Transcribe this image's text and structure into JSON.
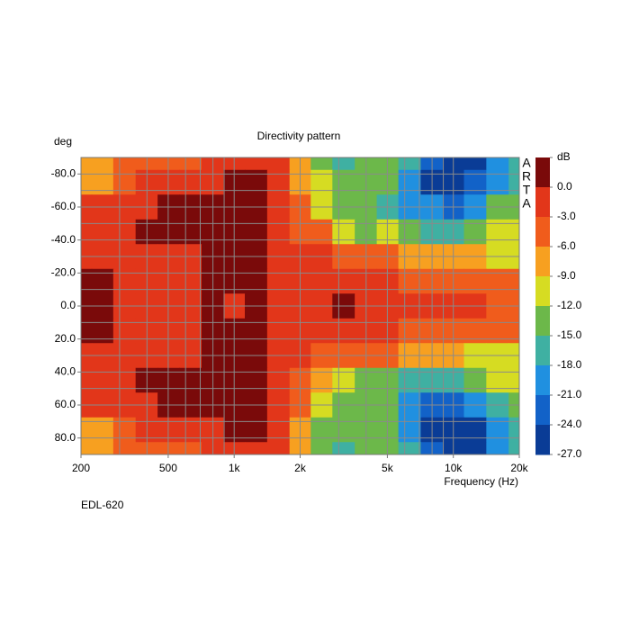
{
  "chart_data": {
    "type": "heatmap",
    "title": "Directivity pattern",
    "y_label": "deg",
    "x_label": "Frequency (Hz)",
    "side_label": "ARTA",
    "note": "EDL-620",
    "log_x": true,
    "x": [
      200,
      250,
      315,
      400,
      500,
      630,
      800,
      1000,
      1250,
      1600,
      2000,
      2500,
      3150,
      4000,
      5000,
      6300,
      8000,
      10000,
      12500,
      16000,
      20000
    ],
    "y": [
      -90,
      -75,
      -60,
      -45,
      -30,
      -15,
      0,
      15,
      30,
      45,
      60,
      75,
      90
    ],
    "values": [
      [
        -8,
        -7,
        -5,
        -4,
        -4,
        -3,
        -2,
        -2,
        -2,
        -2,
        -7,
        -12,
        -15,
        -14,
        -13,
        -17,
        -23,
        -25,
        -24,
        -18,
        -16
      ],
      [
        -7,
        -6,
        -4,
        -2,
        -1,
        -1,
        -1,
        1,
        1,
        -1,
        -7,
        -11,
        -14,
        -13,
        -12,
        -20,
        -24,
        -25,
        -23,
        -20,
        -15
      ],
      [
        -2,
        -2,
        -1,
        -1,
        1,
        1,
        1,
        1,
        1,
        -2,
        -5,
        -10,
        -13,
        -14,
        -15,
        -19,
        -20,
        -22,
        -20,
        -14,
        -12
      ],
      [
        -1,
        -1,
        -1,
        1,
        1,
        1,
        1,
        1,
        1,
        -1,
        -3,
        -5,
        -10,
        -13,
        -11,
        -13,
        -16,
        -16,
        -13,
        -11,
        -10
      ],
      [
        -1,
        -1,
        -1,
        -1,
        -1,
        -1,
        1,
        1,
        1,
        -1,
        -2,
        -2,
        -3,
        -4,
        -4,
        -6,
        -7,
        -8,
        -8,
        -10,
        -10
      ],
      [
        1,
        1,
        -1,
        -1,
        -1,
        -1,
        1,
        1,
        1,
        -1,
        -1,
        -1,
        -1,
        -2,
        -2,
        -3,
        -3,
        -4,
        -4,
        -4,
        -5
      ],
      [
        1,
        1,
        -1,
        -1,
        -1,
        -1,
        1,
        -1,
        1,
        -1,
        -1,
        -1,
        1,
        -1,
        -1,
        -1,
        -2,
        -2,
        -2,
        -3,
        -4
      ],
      [
        1,
        1,
        -1,
        -1,
        -1,
        -1,
        1,
        1,
        1,
        -1,
        -1,
        -1,
        -1,
        -2,
        -2,
        -3,
        -3,
        -4,
        -4,
        -4,
        -5
      ],
      [
        -1,
        -1,
        -1,
        -1,
        -1,
        -1,
        1,
        1,
        1,
        -1,
        -2,
        -3,
        -4,
        -5,
        -5,
        -7,
        -8,
        -8,
        -9,
        -10,
        -10
      ],
      [
        -1,
        -1,
        -1,
        1,
        1,
        1,
        1,
        1,
        1,
        -1,
        -3,
        -6,
        -11,
        -13,
        -12,
        -15,
        -17,
        -16,
        -13,
        -11,
        -10
      ],
      [
        -2,
        -2,
        -1,
        -1,
        1,
        1,
        1,
        1,
        1,
        -2,
        -5,
        -11,
        -13,
        -14,
        -13,
        -19,
        -21,
        -22,
        -20,
        -15,
        -12
      ],
      [
        -7,
        -6,
        -4,
        -2,
        -1,
        -1,
        -1,
        1,
        1,
        -1,
        -7,
        -12,
        -14,
        -13,
        -12,
        -20,
        -25,
        -25,
        -24,
        -20,
        -15
      ],
      [
        -8,
        -7,
        -5,
        -4,
        -4,
        -3,
        -2,
        -2,
        -2,
        -2,
        -7,
        -12,
        -15,
        -14,
        -14,
        -17,
        -23,
        -25,
        -24,
        -18,
        -16
      ]
    ],
    "xlim": [
      200,
      20000
    ],
    "ylim": [
      -90,
      90
    ],
    "xticks": [
      {
        "value": 200,
        "label": "200"
      },
      {
        "value": 500,
        "label": "500"
      },
      {
        "value": 1000,
        "label": "1k"
      },
      {
        "value": 2000,
        "label": "2k"
      },
      {
        "value": 5000,
        "label": "5k"
      },
      {
        "value": 10000,
        "label": "10k"
      },
      {
        "value": 20000,
        "label": "20k"
      }
    ],
    "yticks": [
      {
        "value": -80,
        "label": "-80.0"
      },
      {
        "value": -60,
        "label": "-60.0"
      },
      {
        "value": -40,
        "label": "-40.0"
      },
      {
        "value": -20,
        "label": "-20.0"
      },
      {
        "value": 0,
        "label": "0.0"
      },
      {
        "value": 20,
        "label": "20.0"
      },
      {
        "value": 40,
        "label": "40.0"
      },
      {
        "value": 60,
        "label": "60.0"
      },
      {
        "value": 80,
        "label": "80.0"
      }
    ],
    "xgrid": [
      200,
      300,
      400,
      500,
      600,
      700,
      800,
      900,
      1000,
      2000,
      3000,
      4000,
      5000,
      6000,
      7000,
      8000,
      9000,
      10000,
      20000
    ],
    "ygrid": [
      -80,
      -70,
      -60,
      -50,
      -40,
      -30,
      -20,
      -10,
      0,
      10,
      20,
      30,
      40,
      50,
      60,
      70,
      80
    ],
    "zlim": [
      3,
      -27
    ],
    "zticks": [
      {
        "value": 3,
        "label": "dB"
      },
      {
        "value": 0,
        "label": "0.0"
      },
      {
        "value": -3,
        "label": "-3.0"
      },
      {
        "value": -6,
        "label": "-6.0"
      },
      {
        "value": -9,
        "label": "-9.0"
      },
      {
        "value": -12,
        "label": "-12.0"
      },
      {
        "value": -15,
        "label": "-15.0"
      },
      {
        "value": -18,
        "label": "-18.0"
      },
      {
        "value": -21,
        "label": "-21.0"
      },
      {
        "value": -24,
        "label": "-24.0"
      },
      {
        "value": -27,
        "label": "-27.0"
      }
    ],
    "colors": [
      "#7a0a0a",
      "#e2361a",
      "#f05c1c",
      "#f7a020",
      "#d6dc22",
      "#6cb84a",
      "#3fb0a2",
      "#2090e0",
      "#1262c8",
      "#0a3c96"
    ]
  }
}
